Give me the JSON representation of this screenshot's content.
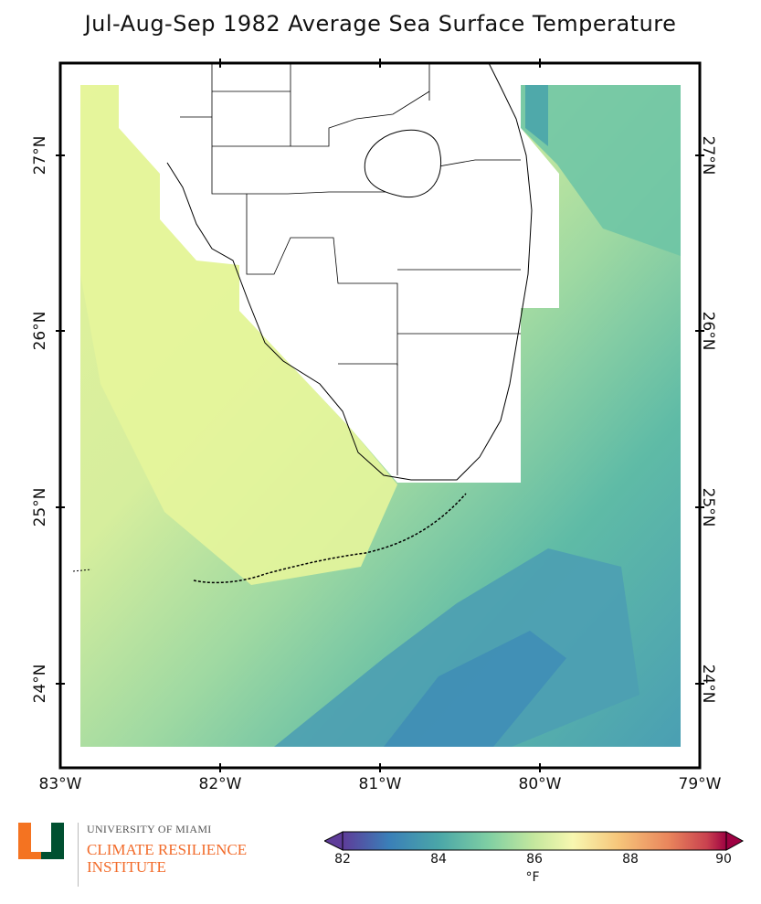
{
  "title": "Jul-Aug-Sep 1982 Average Sea Surface Temperature",
  "axes": {
    "lon_labels": [
      "83°W",
      "82°W",
      "81°W",
      "80°W",
      "79°W"
    ],
    "lat_labels": [
      "27°N",
      "26°N",
      "25°N",
      "24°N"
    ]
  },
  "map": {
    "region": "South Florida",
    "extent_lon": [
      -83,
      -79
    ],
    "extent_lat": [
      23.5,
      27.5
    ]
  },
  "colorbar": {
    "ticks": [
      "82",
      "84",
      "86",
      "88",
      "90"
    ],
    "unit": "°F",
    "range": [
      82,
      90
    ],
    "colors": [
      "#5e3c99",
      "#3a7fb8",
      "#4aa6a8",
      "#7fcfa3",
      "#c5e89e",
      "#f7f7b0",
      "#f6c57a",
      "#e9855c",
      "#c9414f",
      "#9e0142"
    ]
  },
  "logo": {
    "icon": "university-of-miami-u-logo",
    "university": "UNIVERSITY OF MIAMI",
    "institute_line1": "CLIMATE RESILIENCE",
    "institute_line2": "INSTITUTE"
  }
}
